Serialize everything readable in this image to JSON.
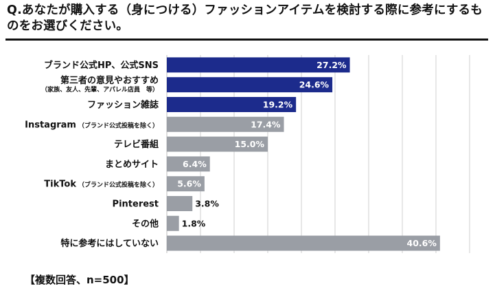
{
  "title": "Q.あなたが購入する（身につける）ファッションアイテムを検討する際に参考にするものをお選びください。",
  "note": "【複数回答、n=500】",
  "colors": {
    "highlight": "#1c2b8c",
    "other": "#9a9ea5",
    "grid": "#cfcfcf"
  },
  "chart_data": {
    "type": "bar",
    "orientation": "horizontal",
    "categories": [
      {
        "label": "ブランド公式HP、公式SNS",
        "sub": ""
      },
      {
        "label": "第三者の意見やおすすめ",
        "sub": "（家族、友人、先輩、アパレル店員　等）"
      },
      {
        "label": "ファッション雑誌",
        "sub": ""
      },
      {
        "label": "Instagram",
        "sub": "（ブランド公式投稿を除く）"
      },
      {
        "label": "テレビ番組",
        "sub": ""
      },
      {
        "label": "まとめサイト",
        "sub": ""
      },
      {
        "label": "TikTok",
        "sub": "（ブランド公式投稿を除く）"
      },
      {
        "label": "Pinterest",
        "sub": ""
      },
      {
        "label": "その他",
        "sub": ""
      },
      {
        "label": "特に参考にはしていない",
        "sub": ""
      }
    ],
    "values": [
      27.2,
      24.6,
      19.2,
      17.4,
      15.0,
      6.4,
      5.6,
      3.8,
      1.8,
      40.6
    ],
    "value_labels": [
      "27.2%",
      "24.6%",
      "19.2%",
      "17.4%",
      "15.0%",
      "6.4%",
      "5.6%",
      "3.8%",
      "1.8%",
      "40.6%"
    ],
    "highlighted": [
      true,
      true,
      true,
      false,
      false,
      false,
      false,
      false,
      false,
      false
    ],
    "xlim": [
      0,
      45
    ],
    "grid": true
  }
}
